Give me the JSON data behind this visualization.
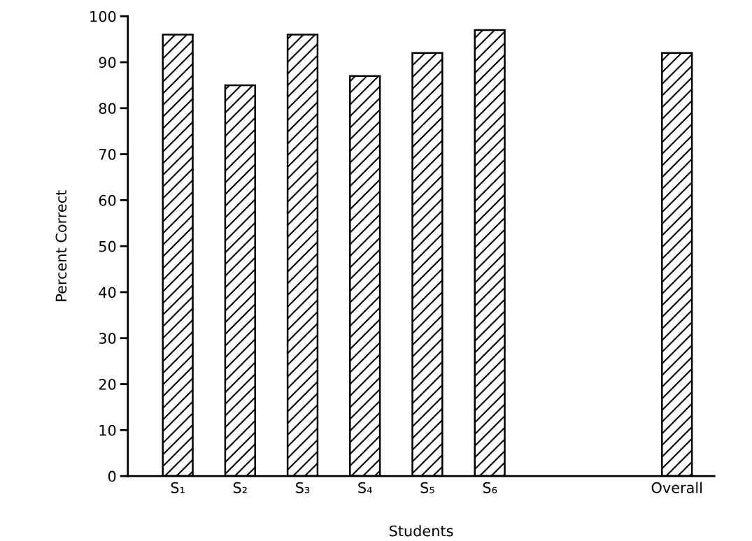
{
  "chart_data": {
    "type": "bar",
    "xlabel": "Students",
    "ylabel": "Percent Correct",
    "categories": [
      "S₁",
      "S₂",
      "S₃",
      "S₄",
      "S₅",
      "S₆",
      null,
      null,
      "Overall"
    ],
    "values": [
      96,
      85,
      96,
      87,
      92,
      97,
      null,
      null,
      92
    ],
    "color": "#000000",
    "ylim": [
      0,
      100
    ],
    "yticks": [
      0,
      10,
      20,
      30,
      40,
      50,
      60,
      70,
      80,
      90,
      100
    ],
    "grid": false,
    "legend": false
  }
}
